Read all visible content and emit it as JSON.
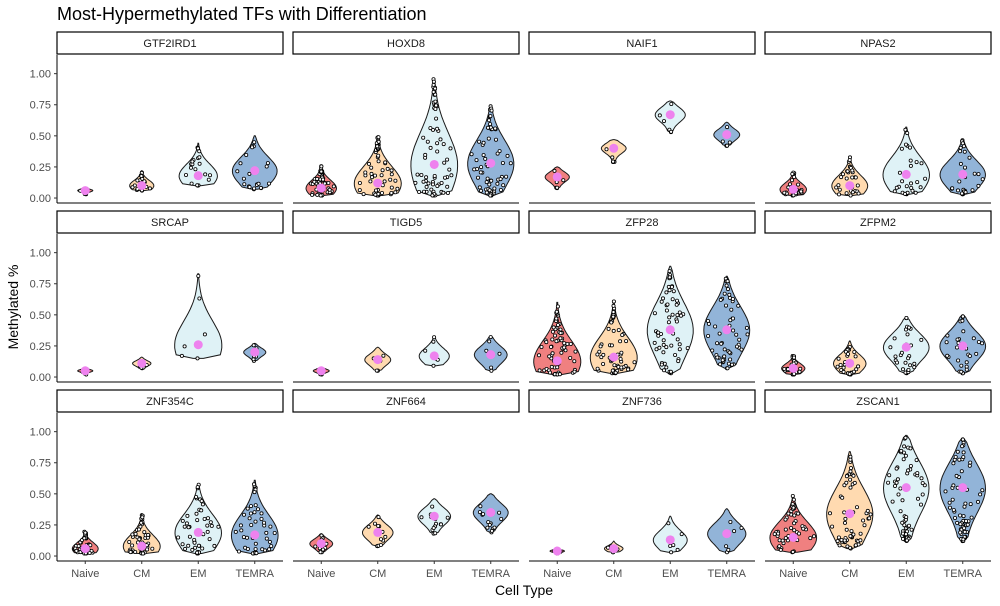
{
  "chart_data": {
    "type": "violin",
    "title": "Most-Hypermethylated TFs with Differentiation",
    "xlabel": "Cell Type",
    "ylabel": "Methylated %",
    "categories": [
      "Naive",
      "CM",
      "EM",
      "TEMRA"
    ],
    "ylim": [
      0,
      1
    ],
    "yticks": [
      0.0,
      0.25,
      0.5,
      0.75,
      1.0
    ],
    "ytick_labels": [
      "0.00",
      "0.25",
      "0.50",
      "0.75",
      "1.00"
    ],
    "grid": false,
    "legend": "none",
    "mean_marker_color": "#EE82EE",
    "fill_colors": [
      "#F08080",
      "#FFDAB0",
      "#DFF2F6",
      "#92B4D8"
    ],
    "facets": [
      {
        "name": "GTF2IRD1",
        "groups": [
          {
            "min": 0.03,
            "max": 0.08,
            "mean": 0.06,
            "n": 18
          },
          {
            "min": 0.06,
            "max": 0.22,
            "mean": 0.1,
            "n": 20
          },
          {
            "min": 0.1,
            "max": 0.44,
            "mean": 0.18,
            "n": 20
          },
          {
            "min": 0.07,
            "max": 0.5,
            "mean": 0.22,
            "n": 22
          }
        ]
      },
      {
        "name": "HOXD8",
        "groups": [
          {
            "min": 0.02,
            "max": 0.26,
            "mean": 0.08,
            "n": 60
          },
          {
            "min": 0.02,
            "max": 0.5,
            "mean": 0.12,
            "n": 60
          },
          {
            "min": 0.02,
            "max": 0.96,
            "mean": 0.27,
            "n": 70
          },
          {
            "min": 0.02,
            "max": 0.74,
            "mean": 0.28,
            "n": 70
          }
        ]
      },
      {
        "name": "NAIF1",
        "groups": [
          {
            "min": 0.08,
            "max": 0.25,
            "mean": 0.17,
            "n": 6
          },
          {
            "min": 0.29,
            "max": 0.47,
            "mean": 0.4,
            "n": 6
          },
          {
            "min": 0.53,
            "max": 0.78,
            "mean": 0.67,
            "n": 6
          },
          {
            "min": 0.42,
            "max": 0.61,
            "mean": 0.51,
            "n": 6
          }
        ]
      },
      {
        "name": "NPAS2",
        "groups": [
          {
            "min": 0.02,
            "max": 0.21,
            "mean": 0.07,
            "n": 30
          },
          {
            "min": 0.02,
            "max": 0.33,
            "mean": 0.1,
            "n": 30
          },
          {
            "min": 0.03,
            "max": 0.57,
            "mean": 0.19,
            "n": 30
          },
          {
            "min": 0.03,
            "max": 0.47,
            "mean": 0.19,
            "n": 30
          }
        ]
      },
      {
        "name": "SRCAP",
        "groups": [
          {
            "min": 0.02,
            "max": 0.07,
            "mean": 0.05,
            "n": 6
          },
          {
            "min": 0.07,
            "max": 0.16,
            "mean": 0.11,
            "n": 6
          },
          {
            "min": 0.15,
            "max": 0.83,
            "mean": 0.26,
            "n": 6
          },
          {
            "min": 0.13,
            "max": 0.27,
            "mean": 0.2,
            "n": 6
          }
        ]
      },
      {
        "name": "TIGD5",
        "groups": [
          {
            "min": 0.02,
            "max": 0.08,
            "mean": 0.05,
            "n": 4
          },
          {
            "min": 0.05,
            "max": 0.24,
            "mean": 0.14,
            "n": 6
          },
          {
            "min": 0.09,
            "max": 0.33,
            "mean": 0.17,
            "n": 6
          },
          {
            "min": 0.05,
            "max": 0.33,
            "mean": 0.18,
            "n": 6
          }
        ]
      },
      {
        "name": "ZFP28",
        "groups": [
          {
            "min": 0.02,
            "max": 0.6,
            "mean": 0.13,
            "n": 70
          },
          {
            "min": 0.03,
            "max": 0.61,
            "mean": 0.16,
            "n": 60
          },
          {
            "min": 0.03,
            "max": 0.89,
            "mean": 0.38,
            "n": 60
          },
          {
            "min": 0.07,
            "max": 0.81,
            "mean": 0.38,
            "n": 60
          }
        ]
      },
      {
        "name": "ZFPM2",
        "groups": [
          {
            "min": 0.02,
            "max": 0.17,
            "mean": 0.07,
            "n": 30
          },
          {
            "min": 0.02,
            "max": 0.29,
            "mean": 0.11,
            "n": 30
          },
          {
            "min": 0.03,
            "max": 0.48,
            "mean": 0.24,
            "n": 30
          },
          {
            "min": 0.03,
            "max": 0.5,
            "mean": 0.25,
            "n": 30
          }
        ]
      },
      {
        "name": "ZNF354C",
        "groups": [
          {
            "min": 0.02,
            "max": 0.2,
            "mean": 0.06,
            "n": 40
          },
          {
            "min": 0.02,
            "max": 0.34,
            "mean": 0.08,
            "n": 50
          },
          {
            "min": 0.02,
            "max": 0.58,
            "mean": 0.19,
            "n": 50
          },
          {
            "min": 0.02,
            "max": 0.61,
            "mean": 0.17,
            "n": 50
          }
        ]
      },
      {
        "name": "ZNF664",
        "groups": [
          {
            "min": 0.03,
            "max": 0.18,
            "mean": 0.1,
            "n": 12
          },
          {
            "min": 0.08,
            "max": 0.33,
            "mean": 0.19,
            "n": 14
          },
          {
            "min": 0.18,
            "max": 0.46,
            "mean": 0.32,
            "n": 14
          },
          {
            "min": 0.19,
            "max": 0.5,
            "mean": 0.35,
            "n": 14
          }
        ]
      },
      {
        "name": "ZNF736",
        "groups": [
          {
            "min": 0.02,
            "max": 0.06,
            "mean": 0.04,
            "n": 6
          },
          {
            "min": 0.03,
            "max": 0.12,
            "mean": 0.06,
            "n": 6
          },
          {
            "min": 0.03,
            "max": 0.32,
            "mean": 0.13,
            "n": 6
          },
          {
            "min": 0.03,
            "max": 0.38,
            "mean": 0.18,
            "n": 6
          }
        ]
      },
      {
        "name": "ZSCAN1",
        "groups": [
          {
            "min": 0.03,
            "max": 0.49,
            "mean": 0.15,
            "n": 50
          },
          {
            "min": 0.06,
            "max": 0.84,
            "mean": 0.34,
            "n": 60
          },
          {
            "min": 0.12,
            "max": 0.97,
            "mean": 0.55,
            "n": 70
          },
          {
            "min": 0.12,
            "max": 0.95,
            "mean": 0.55,
            "n": 70
          }
        ]
      }
    ]
  }
}
